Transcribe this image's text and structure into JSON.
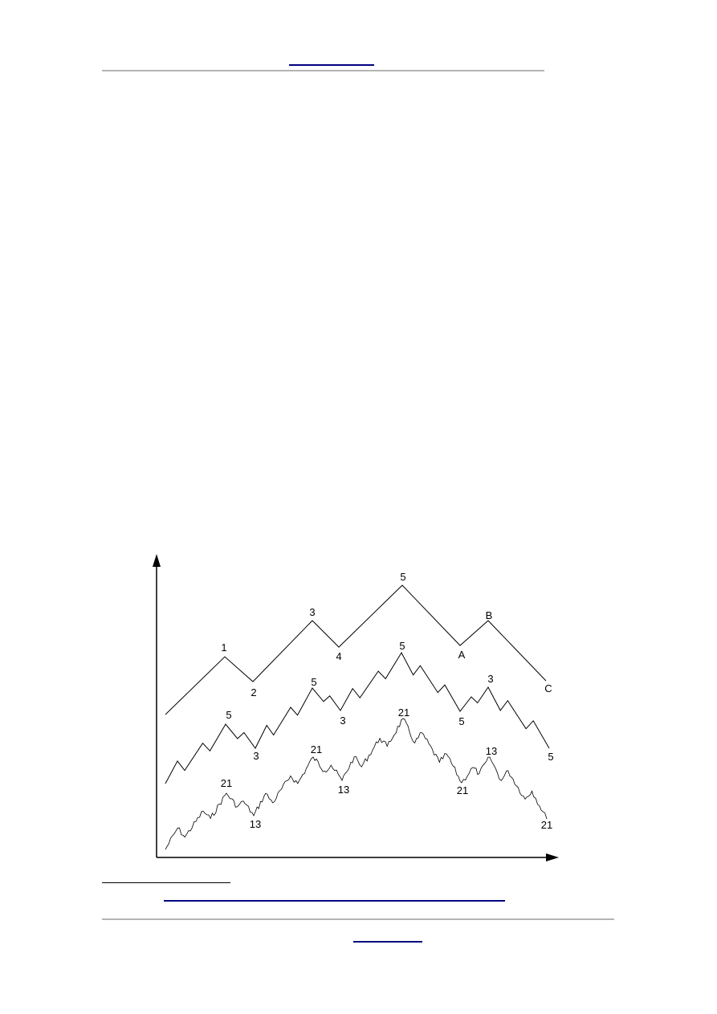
{
  "diagram": {
    "type": "elliott-wave-fractal",
    "colors": {
      "line": "#000000",
      "link": "#000080",
      "rule": "#b4b4b4"
    },
    "top_wave_labels": [
      "1",
      "2",
      "3",
      "4",
      "5",
      "A",
      "B",
      "C"
    ],
    "middle_wave_labels": [
      "5",
      "3",
      "5",
      "3",
      "5",
      "5",
      "3",
      "5"
    ],
    "bottom_wave_labels": [
      "21",
      "13",
      "21",
      "13",
      "21",
      "21",
      "13",
      "21"
    ]
  }
}
